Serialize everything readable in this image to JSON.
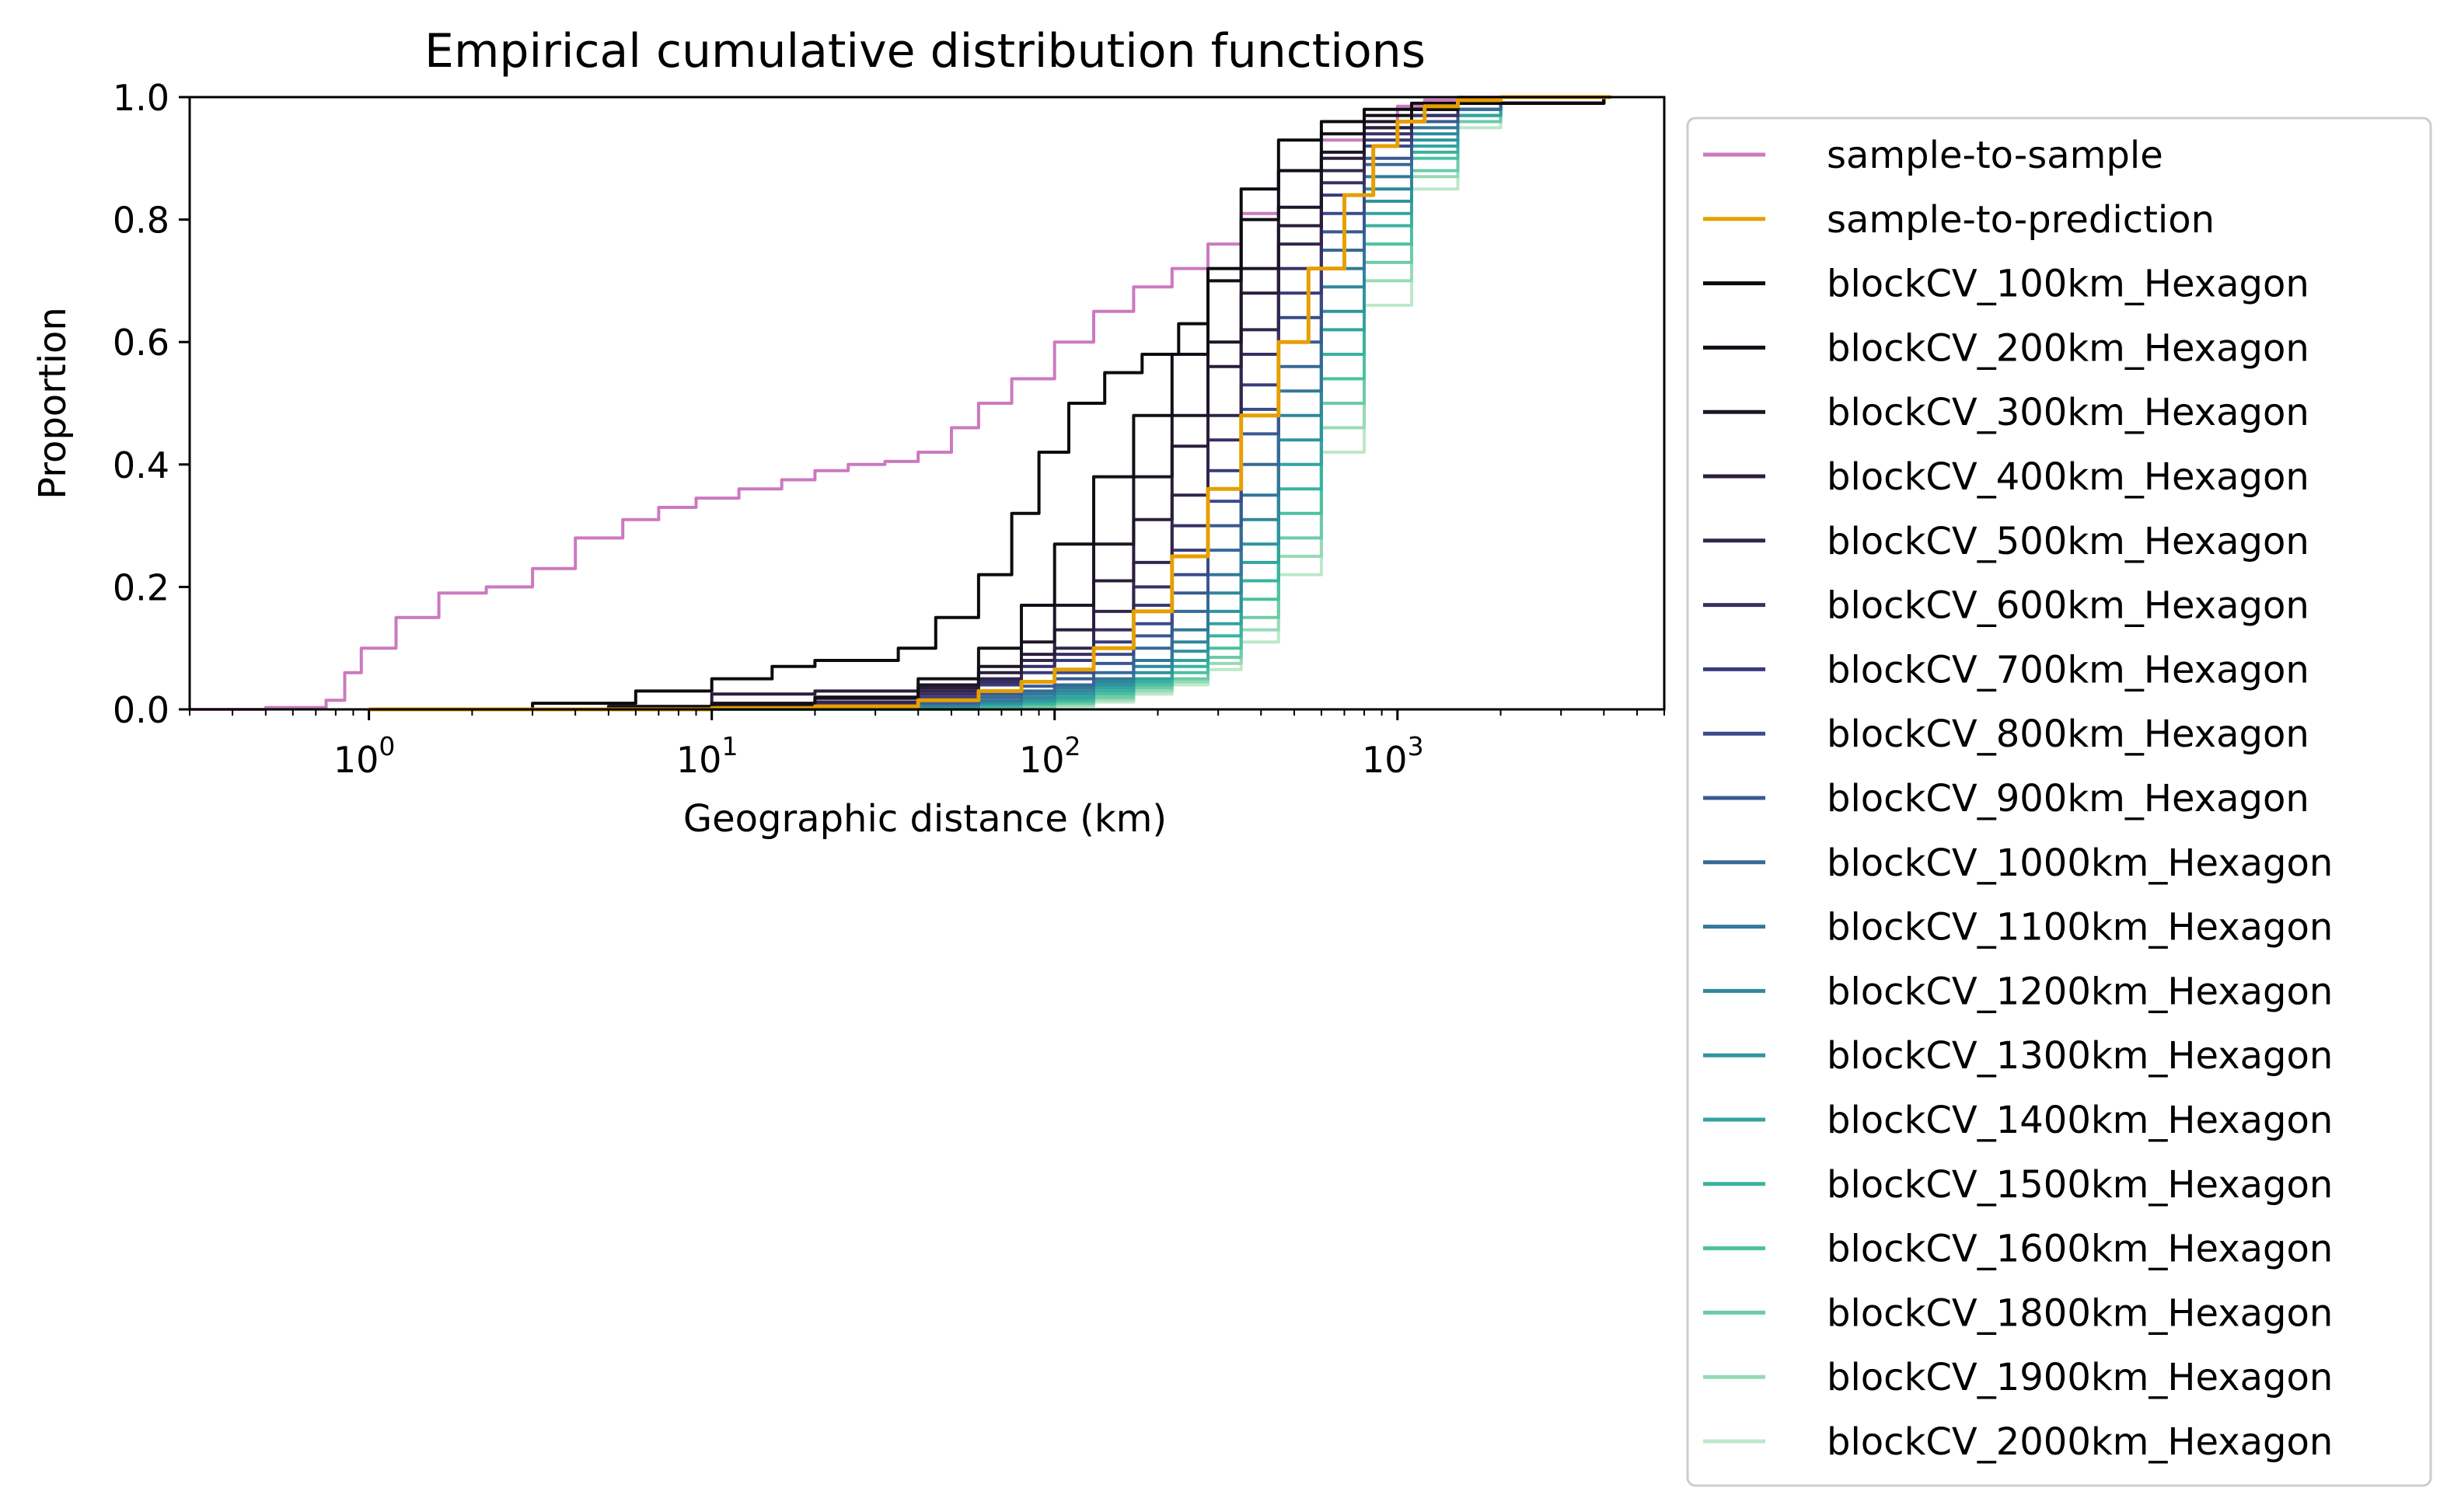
{
  "chart_data": {
    "type": "line",
    "title": "Empirical cumulative distribution functions",
    "xlabel": "Geographic distance (km)",
    "ylabel": "Proportion",
    "xscale": "log",
    "xlim": [
      0.3,
      6000
    ],
    "ylim": [
      0.0,
      1.0
    ],
    "x_ticks": [
      {
        "base": "10",
        "exp": "0"
      },
      {
        "base": "10",
        "exp": "1"
      },
      {
        "base": "10",
        "exp": "2"
      },
      {
        "base": "10",
        "exp": "3"
      }
    ],
    "y_ticks": [
      "0.0",
      "0.2",
      "0.4",
      "0.6",
      "0.8",
      "1.0"
    ],
    "grid": false,
    "legend_position": "outside-right",
    "series": [
      {
        "name": "sample-to-sample",
        "color": "#cc79c0",
        "x": [
          0.3,
          0.5,
          0.75,
          0.85,
          0.95,
          1.2,
          1.6,
          2.2,
          3,
          4,
          5.5,
          7,
          9,
          12,
          16,
          20,
          25,
          32,
          40,
          50,
          60,
          75,
          100,
          130,
          170,
          220,
          280,
          350,
          450,
          600,
          800,
          1000,
          1200,
          1500,
          2000,
          3000,
          4200
        ],
        "y": [
          0.0,
          0.003,
          0.015,
          0.06,
          0.1,
          0.15,
          0.19,
          0.2,
          0.23,
          0.28,
          0.31,
          0.33,
          0.345,
          0.36,
          0.375,
          0.39,
          0.4,
          0.405,
          0.42,
          0.46,
          0.5,
          0.54,
          0.6,
          0.65,
          0.69,
          0.72,
          0.76,
          0.81,
          0.88,
          0.93,
          0.96,
          0.985,
          0.995,
          1.0,
          1.0,
          1.0,
          1.0
        ]
      },
      {
        "name": "sample-to-prediction",
        "color": "#e69f00",
        "x": [
          1,
          10,
          20,
          40,
          60,
          80,
          100,
          130,
          170,
          220,
          280,
          350,
          450,
          550,
          700,
          850,
          1000,
          1200,
          1500,
          2000,
          3000,
          4200
        ],
        "y": [
          0.0,
          0.002,
          0.005,
          0.015,
          0.03,
          0.045,
          0.065,
          0.1,
          0.16,
          0.25,
          0.36,
          0.48,
          0.6,
          0.72,
          0.84,
          0.92,
          0.96,
          0.985,
          0.995,
          1.0,
          1.0,
          1.0
        ]
      },
      {
        "name": "blockCV_100km_Hexagon",
        "color": "#0b0a0f",
        "x": [
          1,
          3,
          6,
          10,
          15,
          20,
          28,
          35,
          45,
          60,
          75,
          90,
          110,
          140,
          180,
          230,
          280,
          350,
          450,
          600,
          800,
          1100,
          1500,
          2000,
          3000,
          4000
        ],
        "y": [
          0.0,
          0.01,
          0.03,
          0.05,
          0.07,
          0.08,
          0.08,
          0.1,
          0.15,
          0.22,
          0.32,
          0.42,
          0.5,
          0.55,
          0.58,
          0.63,
          0.72,
          0.85,
          0.93,
          0.96,
          0.98,
          0.99,
          0.99,
          0.99,
          0.99,
          1.0
        ]
      },
      {
        "name": "blockCV_200km_Hexagon",
        "color": "#120f17",
        "x": [
          1,
          5,
          10,
          20,
          40,
          60,
          80,
          100,
          130,
          170,
          220,
          280,
          350,
          450,
          600,
          800,
          1100,
          1500,
          2000,
          3000,
          4000
        ],
        "y": [
          0.0,
          0.005,
          0.01,
          0.02,
          0.05,
          0.1,
          0.17,
          0.27,
          0.38,
          0.48,
          0.58,
          0.7,
          0.8,
          0.88,
          0.94,
          0.97,
          0.98,
          0.99,
          0.99,
          0.99,
          1.0
        ]
      },
      {
        "name": "blockCV_300km_Hexagon",
        "color": "#1e1626",
        "x": [
          1,
          5,
          10,
          20,
          40,
          60,
          80,
          100,
          130,
          170,
          220,
          280,
          350,
          450,
          600,
          800,
          1100,
          1500,
          2000,
          3000,
          4000
        ],
        "y": [
          0.0,
          0.003,
          0.008,
          0.018,
          0.04,
          0.07,
          0.11,
          0.17,
          0.27,
          0.38,
          0.48,
          0.6,
          0.72,
          0.82,
          0.91,
          0.96,
          0.98,
          0.99,
          0.99,
          0.99,
          1.0
        ]
      },
      {
        "name": "blockCV_400km_Hexagon",
        "color": "#2a1e3a",
        "x": [
          1,
          5,
          10,
          20,
          40,
          60,
          80,
          100,
          130,
          170,
          220,
          280,
          350,
          450,
          600,
          800,
          1100,
          1500,
          2000,
          3000,
          4000
        ],
        "y": [
          0.0,
          0.002,
          0.025,
          0.03,
          0.035,
          0.06,
          0.09,
          0.13,
          0.21,
          0.31,
          0.43,
          0.56,
          0.68,
          0.79,
          0.9,
          0.95,
          0.98,
          0.99,
          0.99,
          0.99,
          1.0
        ]
      },
      {
        "name": "blockCV_500km_Hexagon",
        "color": "#32264d",
        "x": [
          1,
          5,
          10,
          20,
          40,
          60,
          80,
          100,
          130,
          170,
          220,
          280,
          350,
          450,
          600,
          800,
          1100,
          1500,
          2000,
          3000,
          4000
        ],
        "y": [
          0.0,
          0.002,
          0.005,
          0.012,
          0.03,
          0.05,
          0.08,
          0.1,
          0.16,
          0.24,
          0.35,
          0.48,
          0.62,
          0.76,
          0.88,
          0.95,
          0.98,
          0.99,
          0.99,
          0.99,
          1.0
        ]
      },
      {
        "name": "blockCV_600km_Hexagon",
        "color": "#383063",
        "x": [
          1,
          5,
          10,
          20,
          40,
          60,
          80,
          100,
          130,
          170,
          220,
          280,
          350,
          450,
          600,
          800,
          1100,
          1500,
          2000,
          3000,
          4000
        ],
        "y": [
          0.0,
          0.002,
          0.004,
          0.01,
          0.025,
          0.045,
          0.07,
          0.09,
          0.13,
          0.2,
          0.3,
          0.44,
          0.58,
          0.72,
          0.86,
          0.94,
          0.97,
          0.99,
          0.99,
          0.99,
          1.0
        ]
      },
      {
        "name": "blockCV_700km_Hexagon",
        "color": "#3a3b7a",
        "x": [
          1,
          5,
          10,
          20,
          40,
          60,
          80,
          100,
          130,
          170,
          220,
          280,
          350,
          450,
          600,
          800,
          1100,
          1500,
          2000,
          3000,
          4000
        ],
        "y": [
          0.0,
          0.001,
          0.003,
          0.008,
          0.02,
          0.04,
          0.06,
          0.08,
          0.11,
          0.17,
          0.26,
          0.39,
          0.53,
          0.68,
          0.84,
          0.93,
          0.97,
          0.99,
          0.99,
          0.99,
          1.0
        ]
      },
      {
        "name": "blockCV_800km_Hexagon",
        "color": "#3a4a8a",
        "x": [
          1,
          5,
          10,
          20,
          40,
          60,
          80,
          100,
          130,
          170,
          220,
          280,
          350,
          450,
          600,
          800,
          1100,
          1500,
          2000,
          3000,
          4000
        ],
        "y": [
          0.0,
          0.001,
          0.002,
          0.006,
          0.015,
          0.03,
          0.045,
          0.06,
          0.09,
          0.14,
          0.22,
          0.34,
          0.49,
          0.64,
          0.81,
          0.92,
          0.97,
          0.99,
          0.99,
          0.99,
          1.0
        ]
      },
      {
        "name": "blockCV_900km_Hexagon",
        "color": "#395a91",
        "x": [
          1,
          5,
          10,
          20,
          40,
          60,
          80,
          100,
          130,
          170,
          220,
          280,
          350,
          450,
          600,
          800,
          1100,
          1500,
          2000,
          3000,
          4000
        ],
        "y": [
          0.0,
          0.001,
          0.002,
          0.005,
          0.012,
          0.025,
          0.038,
          0.05,
          0.075,
          0.12,
          0.19,
          0.3,
          0.45,
          0.6,
          0.78,
          0.9,
          0.96,
          0.99,
          0.99,
          0.99,
          1.0
        ]
      },
      {
        "name": "blockCV_1000km_Hexagon",
        "color": "#366a96",
        "x": [
          1,
          5,
          10,
          20,
          40,
          60,
          80,
          100,
          130,
          170,
          220,
          280,
          350,
          450,
          600,
          800,
          1100,
          1500,
          2000,
          3000,
          4000
        ],
        "y": [
          0.0,
          0.0,
          0.001,
          0.004,
          0.01,
          0.02,
          0.03,
          0.04,
          0.06,
          0.1,
          0.16,
          0.26,
          0.4,
          0.56,
          0.75,
          0.89,
          0.96,
          0.98,
          0.99,
          0.99,
          1.0
        ]
      },
      {
        "name": "blockCV_1100km_Hexagon",
        "color": "#337898",
        "x": [
          1,
          5,
          10,
          20,
          40,
          60,
          80,
          100,
          130,
          170,
          220,
          280,
          350,
          450,
          600,
          800,
          1100,
          1500,
          2000,
          3000,
          4000
        ],
        "y": [
          0.0,
          0.0,
          0.001,
          0.003,
          0.008,
          0.015,
          0.025,
          0.035,
          0.05,
          0.08,
          0.13,
          0.22,
          0.35,
          0.52,
          0.72,
          0.87,
          0.95,
          0.98,
          0.99,
          0.99,
          1.0
        ]
      },
      {
        "name": "blockCV_1200km_Hexagon",
        "color": "#30879b",
        "x": [
          1,
          5,
          10,
          20,
          40,
          60,
          80,
          100,
          130,
          170,
          220,
          280,
          350,
          450,
          600,
          800,
          1100,
          1500,
          2000,
          3000,
          4000
        ],
        "y": [
          0.0,
          0.0,
          0.001,
          0.002,
          0.006,
          0.012,
          0.02,
          0.03,
          0.045,
          0.07,
          0.11,
          0.19,
          0.31,
          0.48,
          0.69,
          0.85,
          0.94,
          0.98,
          0.99,
          0.99,
          1.0
        ]
      },
      {
        "name": "blockCV_1300km_Hexagon",
        "color": "#2f949e",
        "x": [
          1,
          5,
          10,
          20,
          40,
          60,
          80,
          100,
          130,
          170,
          220,
          280,
          350,
          450,
          600,
          800,
          1100,
          1500,
          2000,
          3000,
          4000
        ],
        "y": [
          0.0,
          0.0,
          0.0,
          0.002,
          0.005,
          0.01,
          0.016,
          0.025,
          0.04,
          0.06,
          0.095,
          0.16,
          0.27,
          0.44,
          0.65,
          0.83,
          0.93,
          0.98,
          0.99,
          0.99,
          1.0
        ]
      },
      {
        "name": "blockCV_1400km_Hexagon",
        "color": "#32a3a0",
        "x": [
          1,
          5,
          10,
          20,
          40,
          60,
          80,
          100,
          130,
          170,
          220,
          280,
          350,
          450,
          600,
          800,
          1100,
          1500,
          2000,
          3000,
          4000
        ],
        "y": [
          0.0,
          0.0,
          0.0,
          0.001,
          0.004,
          0.008,
          0.013,
          0.02,
          0.035,
          0.05,
          0.08,
          0.14,
          0.24,
          0.4,
          0.62,
          0.81,
          0.92,
          0.97,
          0.99,
          0.99,
          1.0
        ]
      },
      {
        "name": "blockCV_1500km_Hexagon",
        "color": "#3ab29f",
        "x": [
          1,
          5,
          10,
          20,
          40,
          60,
          80,
          100,
          130,
          170,
          220,
          280,
          350,
          450,
          600,
          800,
          1100,
          1500,
          2000,
          3000,
          4000
        ],
        "y": [
          0.0,
          0.0,
          0.0,
          0.001,
          0.003,
          0.006,
          0.01,
          0.016,
          0.03,
          0.045,
          0.07,
          0.12,
          0.21,
          0.36,
          0.58,
          0.79,
          0.91,
          0.97,
          0.99,
          0.99,
          1.0
        ]
      },
      {
        "name": "blockCV_1600km_Hexagon",
        "color": "#4cc0a0",
        "x": [
          1,
          5,
          10,
          20,
          40,
          60,
          80,
          100,
          130,
          170,
          220,
          280,
          350,
          450,
          600,
          800,
          1100,
          1500,
          2000,
          3000,
          4000
        ],
        "y": [
          0.0,
          0.0,
          0.0,
          0.0,
          0.002,
          0.005,
          0.008,
          0.013,
          0.025,
          0.04,
          0.06,
          0.1,
          0.18,
          0.32,
          0.54,
          0.76,
          0.9,
          0.97,
          0.99,
          0.99,
          1.0
        ]
      },
      {
        "name": "blockCV_1800km_Hexagon",
        "color": "#6ccba8",
        "x": [
          1,
          5,
          10,
          20,
          40,
          60,
          80,
          100,
          130,
          170,
          220,
          280,
          350,
          450,
          600,
          800,
          1100,
          1500,
          2000,
          3000,
          4000
        ],
        "y": [
          0.0,
          0.0,
          0.0,
          0.0,
          0.0,
          0.002,
          0.005,
          0.01,
          0.02,
          0.035,
          0.05,
          0.085,
          0.15,
          0.28,
          0.5,
          0.73,
          0.88,
          0.96,
          0.99,
          0.99,
          1.0
        ]
      },
      {
        "name": "blockCV_1900km_Hexagon",
        "color": "#97dab6",
        "x": [
          1,
          5,
          10,
          20,
          40,
          60,
          80,
          100,
          130,
          170,
          220,
          280,
          350,
          450,
          600,
          800,
          1100,
          1500,
          2000,
          3000,
          4000
        ],
        "y": [
          0.0,
          0.0,
          0.0,
          0.0,
          0.0,
          0.001,
          0.003,
          0.007,
          0.016,
          0.03,
          0.045,
          0.075,
          0.13,
          0.25,
          0.46,
          0.7,
          0.87,
          0.96,
          0.99,
          0.99,
          1.0
        ]
      },
      {
        "name": "blockCV_2000km_Hexagon",
        "color": "#bde8c9",
        "x": [
          1,
          5,
          10,
          20,
          40,
          60,
          80,
          100,
          130,
          170,
          220,
          280,
          350,
          450,
          600,
          800,
          1100,
          1500,
          2000,
          3000,
          4000
        ],
        "y": [
          0.0,
          0.0,
          0.0,
          0.0,
          0.0,
          0.0,
          0.002,
          0.005,
          0.012,
          0.025,
          0.04,
          0.065,
          0.11,
          0.22,
          0.42,
          0.66,
          0.85,
          0.95,
          0.99,
          0.99,
          1.0
        ]
      }
    ]
  }
}
